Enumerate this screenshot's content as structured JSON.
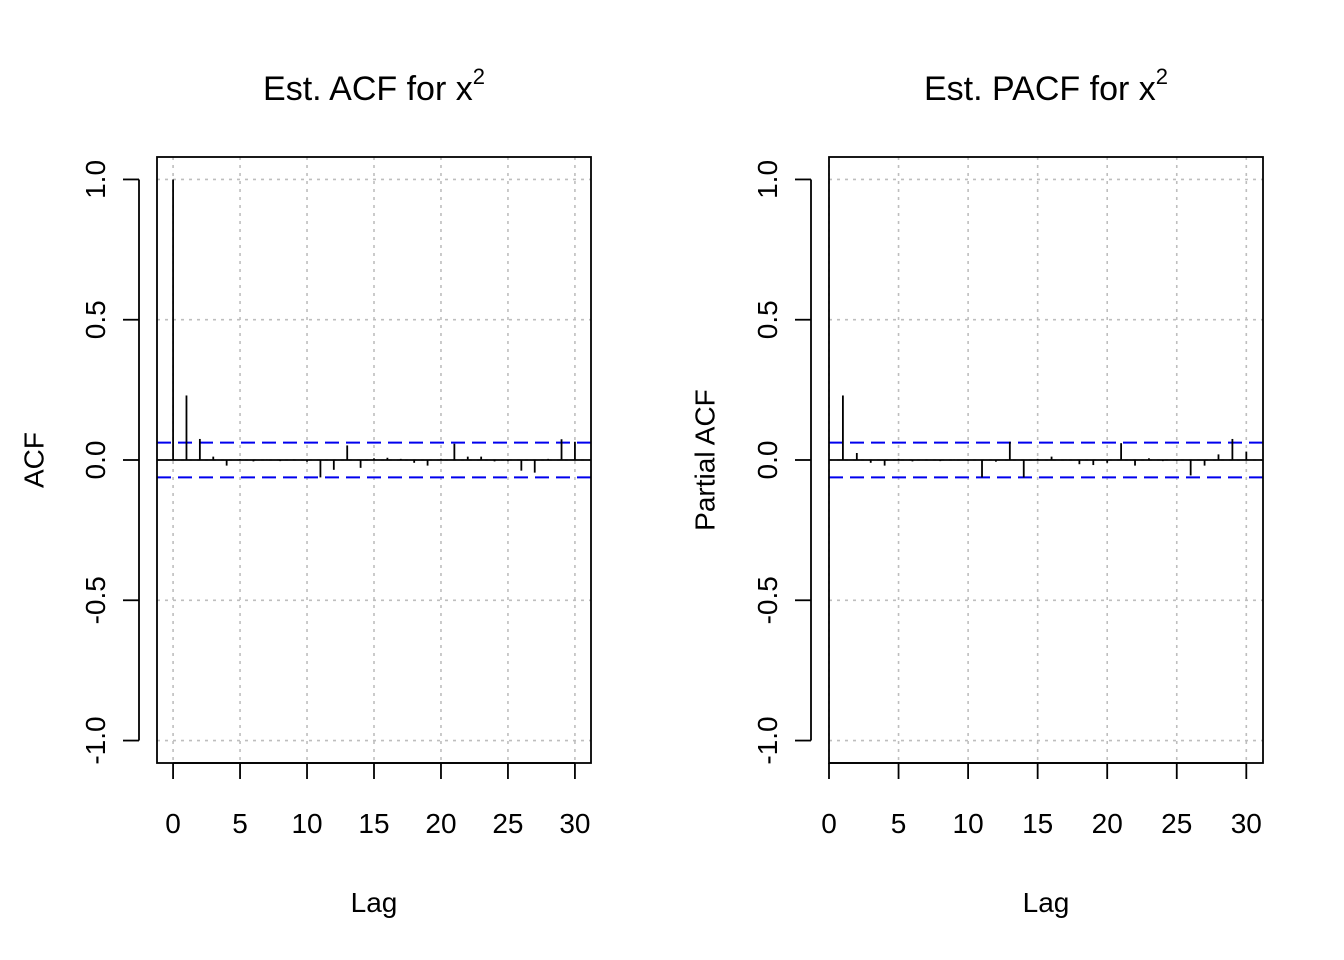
{
  "chart_data": [
    {
      "type": "bar",
      "title": "Est. ACF for x",
      "title_superscript": "2",
      "xlabel": "Lag",
      "ylabel": "ACF",
      "xlim": [
        -1.2,
        31.2
      ],
      "ylim": [
        -1.08,
        1.08
      ],
      "x_ticks": [
        0,
        5,
        10,
        15,
        20,
        25,
        30
      ],
      "y_ticks": [
        -1.0,
        -0.5,
        0.0,
        0.5,
        1.0
      ],
      "x_tick_labels": [
        "0",
        "5",
        "10",
        "15",
        "20",
        "25",
        "30"
      ],
      "y_tick_labels": [
        "-1.0",
        "-0.5",
        "0.0",
        "0.5",
        "1.0"
      ],
      "grid": true,
      "confidence_bound": 0.062,
      "confidence_color": "#0000ee",
      "grid_color": "#bebebe",
      "lags": [
        0,
        1,
        2,
        3,
        4,
        5,
        6,
        7,
        8,
        9,
        10,
        11,
        12,
        13,
        14,
        15,
        16,
        17,
        18,
        19,
        20,
        21,
        22,
        23,
        24,
        25,
        26,
        27,
        28,
        29,
        30
      ],
      "values": [
        1.0,
        0.23,
        0.075,
        0.012,
        -0.02,
        0.003,
        -0.005,
        0.002,
        -0.004,
        0.002,
        -0.006,
        -0.062,
        -0.035,
        0.052,
        -0.028,
        0.006,
        0.008,
        0.004,
        -0.01,
        -0.02,
        0.004,
        0.058,
        0.012,
        0.012,
        -0.005,
        -0.004,
        -0.038,
        -0.045,
        0.004,
        0.074,
        0.065
      ]
    },
    {
      "type": "bar",
      "title": "Est. PACF for x",
      "title_superscript": "2",
      "xlabel": "Lag",
      "ylabel": "Partial ACF",
      "xlim": [
        0,
        31.2
      ],
      "ylim": [
        -1.08,
        1.08
      ],
      "x_ticks": [
        0,
        5,
        10,
        15,
        20,
        25,
        30
      ],
      "y_ticks": [
        -1.0,
        -0.5,
        0.0,
        0.5,
        1.0
      ],
      "x_tick_labels": [
        "0",
        "5",
        "10",
        "15",
        "20",
        "25",
        "30"
      ],
      "y_tick_labels": [
        "-1.0",
        "-0.5",
        "0.0",
        "0.5",
        "1.0"
      ],
      "grid": true,
      "confidence_bound": 0.062,
      "confidence_color": "#0000ee",
      "grid_color": "#bebebe",
      "lags": [
        1,
        2,
        3,
        4,
        5,
        6,
        7,
        8,
        9,
        10,
        11,
        12,
        13,
        14,
        15,
        16,
        17,
        18,
        19,
        20,
        21,
        22,
        23,
        24,
        25,
        26,
        27,
        28,
        29,
        30
      ],
      "values": [
        0.23,
        0.025,
        -0.01,
        -0.02,
        0.004,
        -0.005,
        0.002,
        -0.004,
        0.002,
        -0.003,
        -0.062,
        -0.006,
        0.065,
        -0.062,
        0.004,
        0.012,
        0.002,
        -0.015,
        -0.018,
        -0.01,
        0.06,
        -0.02,
        0.006,
        -0.004,
        -0.003,
        -0.055,
        -0.02,
        0.02,
        0.075,
        0.03
      ]
    }
  ]
}
